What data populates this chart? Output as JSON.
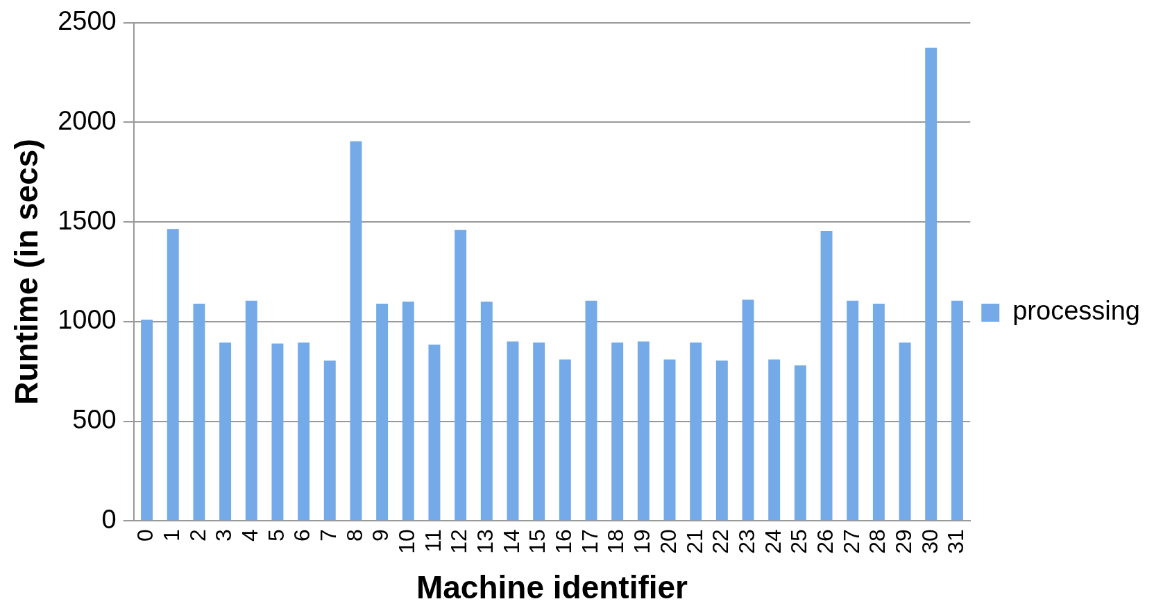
{
  "chart_data": {
    "type": "bar",
    "xlabel": "Machine identifier",
    "ylabel": "Runtime (in secs)",
    "categories": [
      "0",
      "1",
      "2",
      "3",
      "4",
      "5",
      "6",
      "7",
      "8",
      "9",
      "10",
      "11",
      "12",
      "13",
      "14",
      "15",
      "16",
      "17",
      "18",
      "19",
      "20",
      "21",
      "22",
      "23",
      "24",
      "25",
      "26",
      "27",
      "28",
      "29",
      "30",
      "31"
    ],
    "series": [
      {
        "name": "processing",
        "color": "#74aae8",
        "values": [
          1010,
          1465,
          1090,
          895,
          1105,
          890,
          895,
          805,
          1905,
          1090,
          1100,
          885,
          1460,
          1100,
          900,
          895,
          810,
          1105,
          895,
          900,
          810,
          895,
          805,
          1110,
          810,
          780,
          1455,
          1105,
          1090,
          895,
          2375,
          1105
        ]
      }
    ],
    "ylim": [
      0,
      2500
    ],
    "yticks": [
      0,
      500,
      1000,
      1500,
      2000,
      2500
    ],
    "grid": "y",
    "legend": "right"
  }
}
